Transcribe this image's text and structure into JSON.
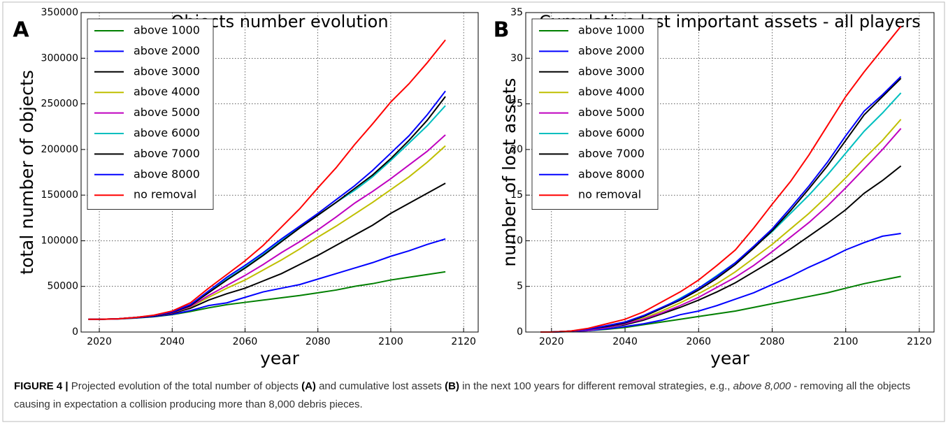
{
  "chart_data": [
    {
      "type": "line",
      "panel_label": "A",
      "title": "Objects number evolution",
      "x_label": "year",
      "y_label": "total number of objects",
      "x": [
        2017,
        2020,
        2025,
        2030,
        2035,
        2040,
        2045,
        2050,
        2055,
        2060,
        2065,
        2070,
        2075,
        2080,
        2085,
        2090,
        2095,
        2100,
        2105,
        2110,
        2115
      ],
      "xlim": [
        2015,
        2124
      ],
      "xticks": [
        2020,
        2040,
        2060,
        2080,
        2100,
        2120
      ],
      "ylim": [
        0,
        350000
      ],
      "yticks": [
        0,
        50000,
        100000,
        150000,
        200000,
        250000,
        300000,
        350000
      ],
      "grid": true,
      "legend": "upper left",
      "series": [
        {
          "name": "above 1000",
          "color": "#007f00",
          "values": [
            14000,
            14000,
            14300,
            15300,
            16700,
            19000,
            22500,
            26500,
            30000,
            32500,
            35000,
            37500,
            40000,
            43000,
            46000,
            50000,
            53000,
            57000,
            60000,
            63000,
            66000
          ]
        },
        {
          "name": "above 2000",
          "color": "#0000ff",
          "values": [
            14000,
            14000,
            14400,
            15500,
            17000,
            19500,
            23500,
            29000,
            32000,
            38000,
            44000,
            48000,
            52000,
            58000,
            64000,
            70000,
            76000,
            83000,
            89000,
            96000,
            102000
          ]
        },
        {
          "name": "above 3000",
          "color": "#000000",
          "values": [
            14000,
            14000,
            14500,
            15800,
            17500,
            20500,
            26000,
            35000,
            42000,
            48000,
            56000,
            64000,
            74000,
            84000,
            95000,
            106000,
            117000,
            130000,
            141000,
            152000,
            163000
          ]
        },
        {
          "name": "above 4000",
          "color": "#bfbf00",
          "values": [
            14000,
            14000,
            14500,
            16000,
            18000,
            21000,
            27500,
            38000,
            48000,
            57000,
            68000,
            79000,
            91000,
            104000,
            116000,
            129000,
            142000,
            156000,
            170000,
            186000,
            204000
          ]
        },
        {
          "name": "above 5000",
          "color": "#bf00bf",
          "values": [
            14000,
            14000,
            14500,
            16000,
            18000,
            21000,
            28000,
            40000,
            51000,
            62000,
            74000,
            87000,
            99000,
            112000,
            126000,
            141000,
            154000,
            168000,
            183000,
            198000,
            216000
          ]
        },
        {
          "name": "above 6000",
          "color": "#00bfbf",
          "values": [
            14000,
            14000,
            14500,
            16000,
            18000,
            22000,
            29500,
            44000,
            58000,
            71000,
            85000,
            100000,
            115000,
            128000,
            142000,
            155000,
            170000,
            188000,
            207000,
            226000,
            248000
          ]
        },
        {
          "name": "above 7000",
          "color": "#000000",
          "values": [
            14000,
            14000,
            14500,
            16000,
            18000,
            21500,
            29000,
            43000,
            57000,
            70000,
            84000,
            99000,
            114000,
            128000,
            142000,
            157000,
            172000,
            190000,
            210000,
            232000,
            258000
          ]
        },
        {
          "name": "above 8000",
          "color": "#0000ff",
          "values": [
            14000,
            14000,
            14500,
            16000,
            18000,
            22000,
            30000,
            45000,
            60000,
            73000,
            87000,
            102000,
            116000,
            130000,
            145000,
            160000,
            177000,
            196000,
            215000,
            238000,
            264000
          ]
        },
        {
          "name": "no removal",
          "color": "#ff0000",
          "values": [
            14000,
            14000,
            14500,
            16000,
            18500,
            23000,
            32000,
            48000,
            63000,
            78000,
            95000,
            115000,
            135000,
            158000,
            180000,
            205000,
            228000,
            252000,
            272000,
            295000,
            320000
          ]
        }
      ]
    },
    {
      "type": "line",
      "panel_label": "B",
      "title": "Cumulative lost important assets - all players",
      "x_label": "year",
      "y_label": "number of lost assets",
      "x": [
        2017,
        2020,
        2025,
        2030,
        2035,
        2040,
        2045,
        2050,
        2055,
        2060,
        2065,
        2070,
        2075,
        2080,
        2085,
        2090,
        2095,
        2100,
        2105,
        2110,
        2115
      ],
      "xlim": [
        2013,
        2124
      ],
      "xticks": [
        2020,
        2040,
        2060,
        2080,
        2100,
        2120
      ],
      "ylim": [
        0,
        35
      ],
      "yticks": [
        0,
        5,
        10,
        15,
        20,
        25,
        30,
        35
      ],
      "grid": true,
      "legend": "upper left",
      "series": [
        {
          "name": "above 1000",
          "color": "#007f00",
          "values": [
            0,
            0,
            0.05,
            0.15,
            0.3,
            0.5,
            0.8,
            1.1,
            1.4,
            1.7,
            2.0,
            2.3,
            2.7,
            3.1,
            3.5,
            3.9,
            4.3,
            4.8,
            5.3,
            5.7,
            6.1
          ]
        },
        {
          "name": "above 2000",
          "color": "#0000ff",
          "values": [
            0,
            0,
            0.05,
            0.15,
            0.35,
            0.6,
            0.9,
            1.3,
            1.9,
            2.3,
            2.9,
            3.6,
            4.3,
            5.2,
            6.1,
            7.1,
            8.0,
            9.0,
            9.8,
            10.5,
            10.8
          ]
        },
        {
          "name": "above 3000",
          "color": "#000000",
          "values": [
            0,
            0,
            0.1,
            0.2,
            0.5,
            0.8,
            1.3,
            2.0,
            2.7,
            3.5,
            4.4,
            5.4,
            6.6,
            7.8,
            9.1,
            10.5,
            11.9,
            13.4,
            15.2,
            16.6,
            18.2
          ]
        },
        {
          "name": "above 4000",
          "color": "#bfbf00",
          "values": [
            0,
            0,
            0.1,
            0.2,
            0.5,
            0.9,
            1.5,
            2.3,
            3.2,
            4.2,
            5.3,
            6.6,
            8.1,
            9.6,
            11.3,
            13.0,
            14.9,
            16.9,
            19.0,
            21.0,
            23.3
          ]
        },
        {
          "name": "above 5000",
          "color": "#bf00bf",
          "values": [
            0,
            0,
            0.1,
            0.2,
            0.5,
            0.9,
            1.4,
            2.1,
            2.9,
            3.8,
            4.9,
            6.0,
            7.3,
            8.8,
            10.4,
            12.0,
            13.8,
            15.8,
            17.9,
            20.0,
            22.3
          ]
        },
        {
          "name": "above 6000",
          "color": "#00bfbf",
          "values": [
            0,
            0,
            0.1,
            0.3,
            0.6,
            1.0,
            1.7,
            2.6,
            3.7,
            4.8,
            6.2,
            7.6,
            9.3,
            11.0,
            13.0,
            15.0,
            17.2,
            19.6,
            22.0,
            24.0,
            26.2
          ]
        },
        {
          "name": "above 7000",
          "color": "#000000",
          "values": [
            0,
            0,
            0.1,
            0.3,
            0.6,
            1.0,
            1.7,
            2.6,
            3.5,
            4.6,
            5.9,
            7.4,
            9.2,
            11.1,
            13.3,
            15.7,
            18.2,
            21.0,
            23.8,
            25.8,
            27.8
          ]
        },
        {
          "name": "above 8000",
          "color": "#0000ff",
          "values": [
            0,
            0,
            0.1,
            0.3,
            0.7,
            1.1,
            1.8,
            2.7,
            3.6,
            4.8,
            6.1,
            7.6,
            9.4,
            11.3,
            13.6,
            16.0,
            18.6,
            21.5,
            24.2,
            26.0,
            28.0
          ]
        },
        {
          "name": "no removal",
          "color": "#ff0000",
          "values": [
            0,
            0,
            0.1,
            0.4,
            0.9,
            1.4,
            2.2,
            3.3,
            4.4,
            5.7,
            7.3,
            9.0,
            11.4,
            14.0,
            16.5,
            19.4,
            22.6,
            25.8,
            28.5,
            31.0,
            33.5
          ]
        }
      ]
    }
  ],
  "caption": {
    "label": "FIGURE 4 |",
    "parts": [
      {
        "text": " Projected evolution of the total number of objects ",
        "style": "normal"
      },
      {
        "text": "(A)",
        "style": "bold"
      },
      {
        "text": " and cumulative lost assets ",
        "style": "normal"
      },
      {
        "text": "(B)",
        "style": "bold"
      },
      {
        "text": " in the next 100 years for different removal strategies, e.g., ",
        "style": "normal"
      },
      {
        "text": "above 8,000",
        "style": "italic"
      },
      {
        "text": " - removing all the objects causing in expectation a collision producing more than 8,000 debris pieces.",
        "style": "normal"
      }
    ]
  }
}
